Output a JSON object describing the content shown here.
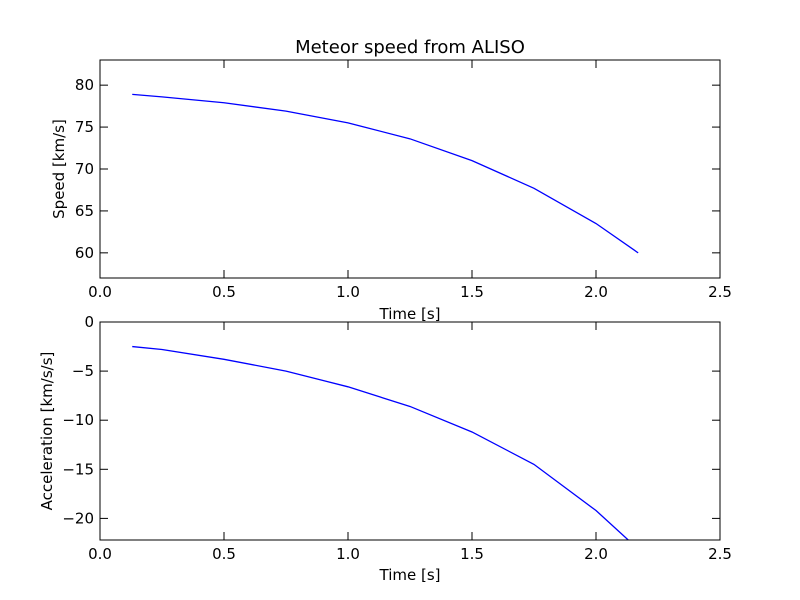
{
  "chart_data": [
    {
      "type": "line",
      "title": "Meteor speed from  ALISO",
      "xlabel": "Time [s]",
      "ylabel": "Speed [km/s]",
      "xlim": [
        0.0,
        2.5
      ],
      "ylim": [
        57,
        83
      ],
      "xticks": [
        0.0,
        0.5,
        1.0,
        1.5,
        2.0,
        2.5
      ],
      "xtick_labels": [
        "0.0",
        "0.5",
        "1.0",
        "1.5",
        "2.0",
        "2.5"
      ],
      "yticks": [
        60,
        65,
        70,
        75,
        80
      ],
      "ytick_labels": [
        "60",
        "65",
        "70",
        "75",
        "80"
      ],
      "grid": false,
      "color": "#0000ff",
      "series": [
        {
          "x": [
            0.13,
            0.25,
            0.5,
            0.75,
            1.0,
            1.25,
            1.5,
            1.75,
            2.0,
            2.17
          ],
          "y": [
            78.9,
            78.6,
            77.9,
            76.9,
            75.5,
            73.6,
            71.0,
            67.7,
            63.5,
            60.0
          ]
        }
      ]
    },
    {
      "type": "line",
      "title": "",
      "xlabel": "Time [s]",
      "ylabel": "Acceleration [km/s/s]",
      "xlim": [
        0.0,
        2.5
      ],
      "ylim": [
        -22.2,
        0
      ],
      "xticks": [
        0.0,
        0.5,
        1.0,
        1.5,
        2.0,
        2.5
      ],
      "xtick_labels": [
        "0.0",
        "0.5",
        "1.0",
        "1.5",
        "2.0",
        "2.5"
      ],
      "yticks": [
        0,
        -5,
        -10,
        -15,
        -20
      ],
      "ytick_labels": [
        "0",
        "−5",
        "−10",
        "−15",
        "−20"
      ],
      "grid": false,
      "color": "#0000ff",
      "series": [
        {
          "x": [
            0.13,
            0.25,
            0.5,
            0.75,
            1.0,
            1.25,
            1.5,
            1.75,
            2.0,
            2.13
          ],
          "y": [
            -2.5,
            -2.8,
            -3.8,
            -5.0,
            -6.6,
            -8.6,
            -11.2,
            -14.5,
            -19.2,
            -22.2
          ]
        }
      ]
    }
  ]
}
